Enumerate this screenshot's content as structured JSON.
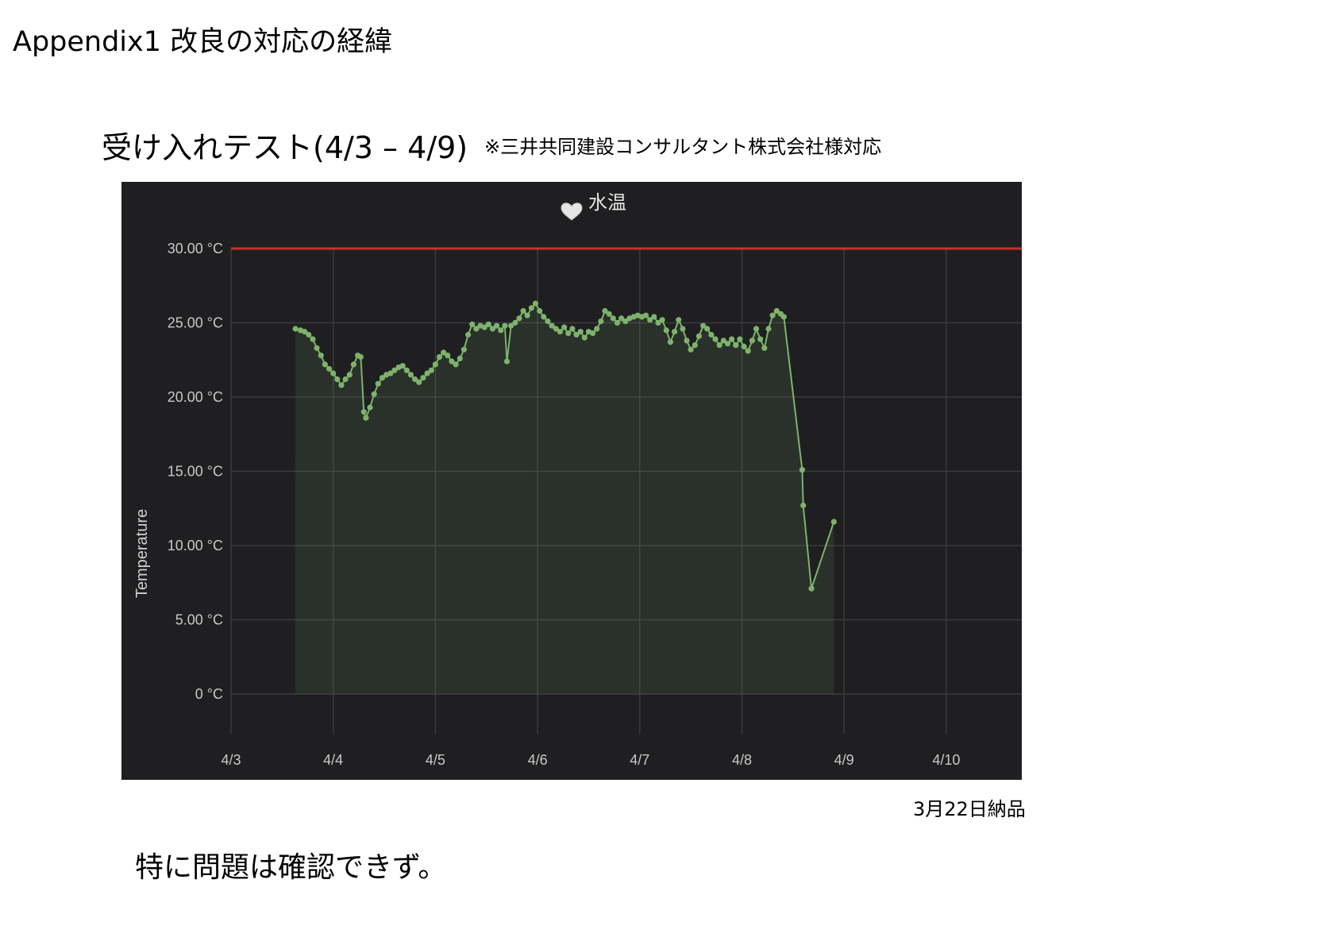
{
  "document": {
    "title": "Appendix1 改良の対応の経緯",
    "section_title": "受け入れテスト(4/3 – 4/9)",
    "section_note": "※三井共同建設コンサルタント株式会社様対応",
    "delivery_note": "3月22日納品",
    "conclusion": "特に問題は確認できず。"
  },
  "panel": {
    "title": "水温",
    "icon": "heart-icon",
    "background": "#1f1f21",
    "line_color": "#7eb26d",
    "threshold_color": "#c4302b"
  },
  "chart_data": {
    "type": "line",
    "title": "水温",
    "ylabel": "Temperature",
    "xlabel": "",
    "ylim": [
      -3,
      30
    ],
    "yticks": [
      "30.00 °C",
      "25.00 °C",
      "20.00 °C",
      "15.00 °C",
      "10.00 °C",
      "5.00 °C",
      "0 °C"
    ],
    "ytick_values": [
      30,
      25,
      20,
      15,
      10,
      5,
      0
    ],
    "xticks": [
      "4/3",
      "4/4",
      "4/5",
      "4/6",
      "4/7",
      "4/8",
      "4/9",
      "4/10"
    ],
    "x_unit": "days from 4/3",
    "threshold": 30,
    "grid": true,
    "fill": true,
    "series": [
      {
        "values": [
          [
            0.63,
            24.6
          ],
          [
            0.68,
            24.5
          ],
          [
            0.72,
            24.4
          ],
          [
            0.76,
            24.2
          ],
          [
            0.8,
            23.9
          ],
          [
            0.84,
            23.3
          ],
          [
            0.88,
            22.8
          ],
          [
            0.92,
            22.2
          ],
          [
            0.96,
            21.9
          ],
          [
            1.0,
            21.6
          ],
          [
            1.04,
            21.2
          ],
          [
            1.08,
            20.8
          ],
          [
            1.12,
            21.2
          ],
          [
            1.16,
            21.5
          ],
          [
            1.2,
            22.2
          ],
          [
            1.24,
            22.8
          ],
          [
            1.27,
            22.7
          ],
          [
            1.3,
            19.0
          ],
          [
            1.32,
            18.6
          ],
          [
            1.36,
            19.3
          ],
          [
            1.4,
            20.2
          ],
          [
            1.44,
            20.9
          ],
          [
            1.48,
            21.3
          ],
          [
            1.52,
            21.5
          ],
          [
            1.56,
            21.6
          ],
          [
            1.6,
            21.8
          ],
          [
            1.64,
            22.0
          ],
          [
            1.68,
            22.1
          ],
          [
            1.72,
            21.8
          ],
          [
            1.76,
            21.5
          ],
          [
            1.8,
            21.2
          ],
          [
            1.84,
            21.0
          ],
          [
            1.88,
            21.3
          ],
          [
            1.92,
            21.6
          ],
          [
            1.96,
            21.8
          ],
          [
            2.0,
            22.2
          ],
          [
            2.04,
            22.7
          ],
          [
            2.08,
            23.0
          ],
          [
            2.12,
            22.8
          ],
          [
            2.16,
            22.4
          ],
          [
            2.2,
            22.2
          ],
          [
            2.24,
            22.6
          ],
          [
            2.28,
            23.2
          ],
          [
            2.32,
            24.2
          ],
          [
            2.36,
            24.9
          ],
          [
            2.4,
            24.6
          ],
          [
            2.44,
            24.8
          ],
          [
            2.48,
            24.7
          ],
          [
            2.52,
            24.9
          ],
          [
            2.56,
            24.6
          ],
          [
            2.6,
            24.8
          ],
          [
            2.64,
            24.5
          ],
          [
            2.68,
            24.8
          ],
          [
            2.7,
            22.4
          ],
          [
            2.74,
            24.8
          ],
          [
            2.78,
            25.0
          ],
          [
            2.82,
            25.3
          ],
          [
            2.86,
            25.8
          ],
          [
            2.9,
            25.5
          ],
          [
            2.94,
            26.0
          ],
          [
            2.98,
            26.3
          ],
          [
            3.02,
            25.8
          ],
          [
            3.06,
            25.4
          ],
          [
            3.1,
            25.1
          ],
          [
            3.14,
            24.8
          ],
          [
            3.18,
            24.6
          ],
          [
            3.22,
            24.4
          ],
          [
            3.26,
            24.7
          ],
          [
            3.3,
            24.3
          ],
          [
            3.34,
            24.6
          ],
          [
            3.38,
            24.2
          ],
          [
            3.42,
            24.4
          ],
          [
            3.46,
            24.0
          ],
          [
            3.5,
            24.4
          ],
          [
            3.54,
            24.3
          ],
          [
            3.58,
            24.6
          ],
          [
            3.62,
            25.1
          ],
          [
            3.66,
            25.8
          ],
          [
            3.7,
            25.6
          ],
          [
            3.74,
            25.3
          ],
          [
            3.78,
            25.0
          ],
          [
            3.82,
            25.3
          ],
          [
            3.86,
            25.1
          ],
          [
            3.9,
            25.3
          ],
          [
            3.94,
            25.4
          ],
          [
            3.98,
            25.5
          ],
          [
            4.02,
            25.4
          ],
          [
            4.06,
            25.5
          ],
          [
            4.1,
            25.2
          ],
          [
            4.14,
            25.4
          ],
          [
            4.18,
            25.0
          ],
          [
            4.22,
            25.2
          ],
          [
            4.26,
            24.5
          ],
          [
            4.3,
            23.7
          ],
          [
            4.34,
            24.4
          ],
          [
            4.38,
            25.2
          ],
          [
            4.42,
            24.6
          ],
          [
            4.46,
            23.8
          ],
          [
            4.5,
            23.2
          ],
          [
            4.54,
            23.5
          ],
          [
            4.58,
            24.1
          ],
          [
            4.62,
            24.8
          ],
          [
            4.66,
            24.6
          ],
          [
            4.7,
            24.2
          ],
          [
            4.74,
            23.9
          ],
          [
            4.78,
            23.5
          ],
          [
            4.82,
            23.8
          ],
          [
            4.86,
            23.6
          ],
          [
            4.9,
            23.9
          ],
          [
            4.94,
            23.5
          ],
          [
            4.98,
            23.9
          ],
          [
            5.02,
            23.4
          ],
          [
            5.06,
            23.1
          ],
          [
            5.1,
            23.8
          ],
          [
            5.14,
            24.6
          ],
          [
            5.18,
            23.9
          ],
          [
            5.22,
            23.3
          ],
          [
            5.26,
            24.6
          ],
          [
            5.3,
            25.5
          ],
          [
            5.34,
            25.8
          ],
          [
            5.38,
            25.6
          ],
          [
            5.41,
            25.4
          ],
          [
            5.59,
            15.1
          ],
          [
            5.6,
            12.7
          ],
          [
            5.68,
            7.1
          ],
          [
            5.9,
            11.6
          ]
        ]
      }
    ]
  }
}
